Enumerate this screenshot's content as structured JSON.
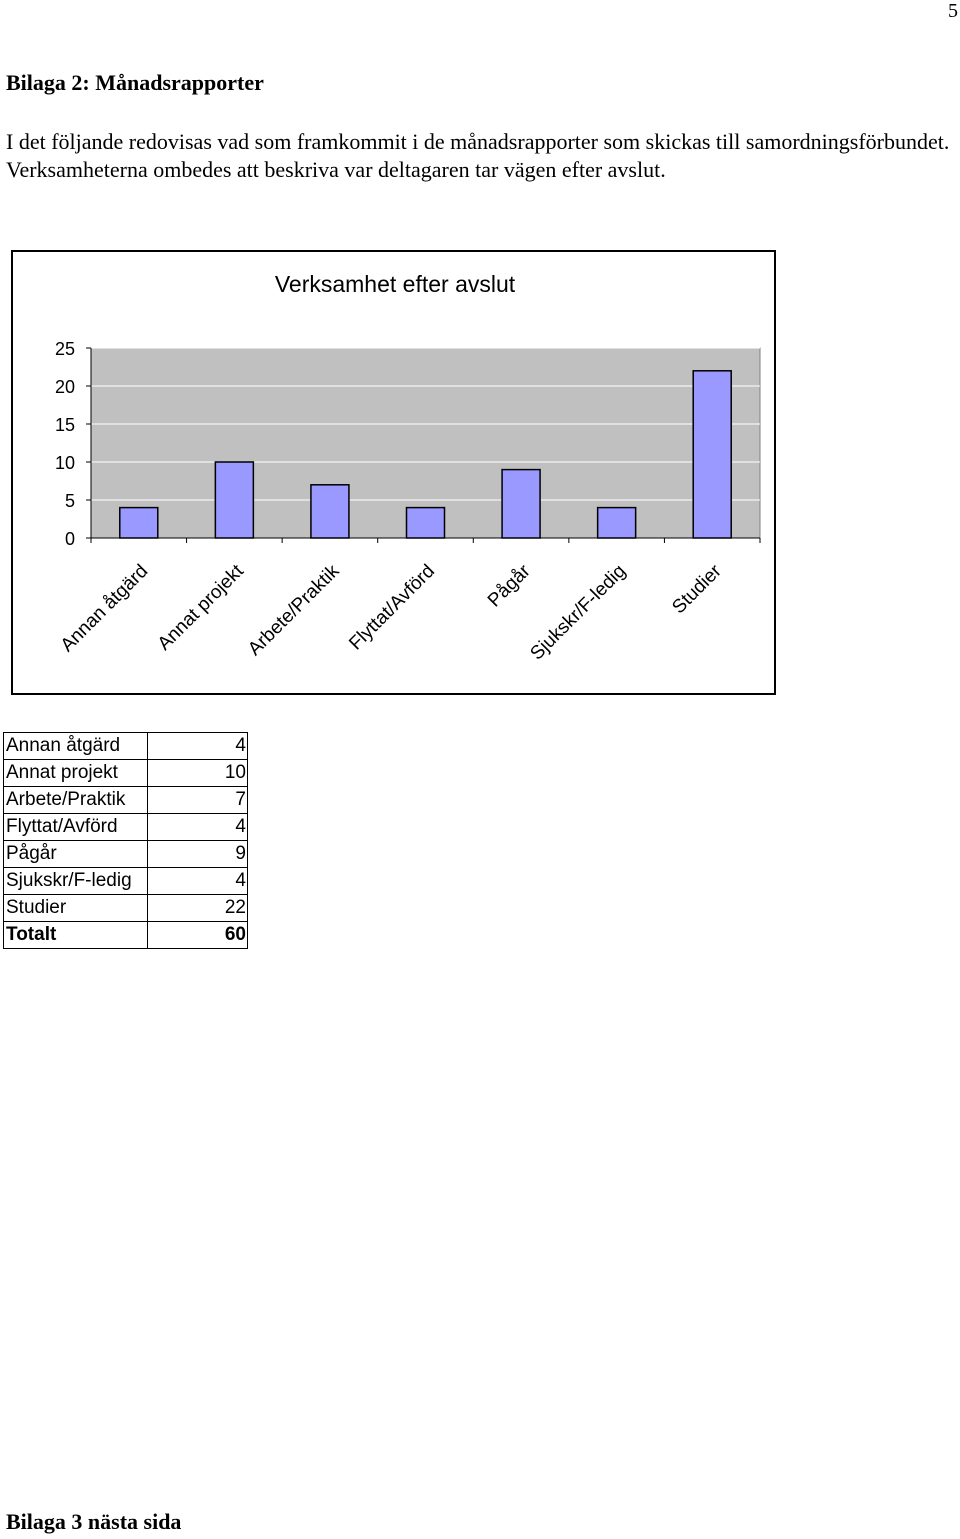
{
  "page_number": "5",
  "heading": "Bilaga 2: Månadsrapporter",
  "intro": "I det följande redovisas vad som framkommit i de månadsrapporter som skickas till samordningsförbundet. Verksamheterna ombedes att beskriva var deltagaren tar vägen efter avslut.",
  "chart_data": {
    "type": "bar",
    "title": "Verksamhet efter avslut",
    "categories": [
      "Annan åtgärd",
      "Annat projekt",
      "Arbete/Praktik",
      "Flyttat/Avförd",
      "Pågår",
      "Sjukskr/F-ledig",
      "Studier"
    ],
    "values": [
      4,
      10,
      7,
      4,
      9,
      4,
      22
    ],
    "ylim": [
      0,
      25
    ],
    "yticks": [
      0,
      5,
      10,
      15,
      20,
      25
    ],
    "grid": true,
    "legend": "none",
    "colors": {
      "bar_fill": "#9999ff",
      "plot_background": "#c0c0c0",
      "gridline": "#ffffff"
    }
  },
  "table": {
    "rows": [
      {
        "label": "Annan åtgärd",
        "value": "4"
      },
      {
        "label": "Annat projekt",
        "value": "10"
      },
      {
        "label": "Arbete/Praktik",
        "value": "7"
      },
      {
        "label": "Flyttat/Avförd",
        "value": "4"
      },
      {
        "label": "Pågår",
        "value": "9"
      },
      {
        "label": "Sjukskr/F-ledig",
        "value": "4"
      },
      {
        "label": "Studier",
        "value": "22"
      }
    ],
    "total": {
      "label": "Totalt",
      "value": "60"
    }
  },
  "footer": "Bilaga 3 nästa sida"
}
